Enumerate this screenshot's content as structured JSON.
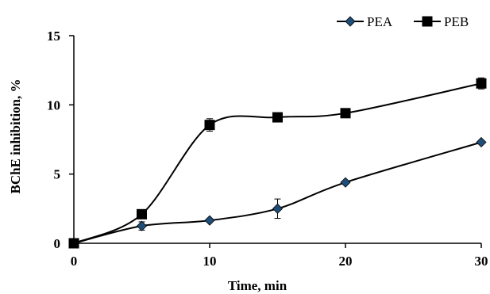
{
  "chart_data": {
    "type": "line",
    "xlabel": "Time, min",
    "ylabel": "BChE  inhibition, %",
    "xlim": [
      0,
      30
    ],
    "ylim": [
      0,
      15
    ],
    "xticks": [
      0,
      10,
      20,
      30
    ],
    "yticks": [
      0,
      5,
      10,
      15
    ],
    "x_tick_labels": [
      "0",
      "10",
      "20",
      "30"
    ],
    "y_tick_labels": [
      "0",
      "5",
      "10",
      "15"
    ],
    "legend_placement": "top-right",
    "grid": false,
    "x": [
      0,
      5,
      10,
      15,
      20,
      30
    ],
    "series": [
      {
        "name": "PEA",
        "marker": "diamond",
        "marker_color": "#1f4e79",
        "line_color": "#000000",
        "values": [
          0,
          1.25,
          1.65,
          2.5,
          4.4,
          7.3
        ],
        "errors": [
          0,
          0.3,
          0.12,
          0.7,
          0.12,
          0.1
        ]
      },
      {
        "name": "PEB",
        "marker": "square",
        "marker_color": "#000000",
        "line_color": "#000000",
        "values": [
          0,
          2.1,
          8.55,
          9.1,
          9.4,
          11.55
        ],
        "errors": [
          0,
          0.1,
          0.45,
          0.12,
          0.12,
          0.4
        ]
      }
    ]
  }
}
